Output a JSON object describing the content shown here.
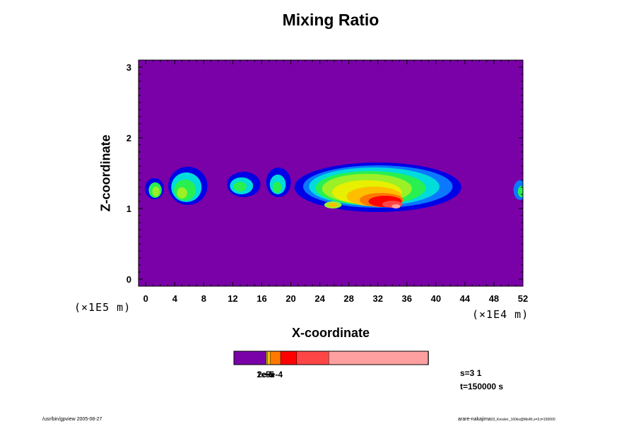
{
  "footer": {
    "left": "/usr/bin/gpview 2005-08-27",
    "right": "arare-nakajima",
    "right_small": "03_Kessler_160ks@MixRt,s=3,t=150000"
  },
  "info": {
    "s": "s=3 1",
    "t": "t=150000 s"
  },
  "colors": {
    "background": "#7a00a8",
    "levels": [
      "#7a00a8",
      "#0000e6",
      "#0a78ff",
      "#00dcdc",
      "#28f050",
      "#9cf028",
      "#e6f000",
      "#ffbe00",
      "#ff7800",
      "#ff0000",
      "#ff4646",
      "#ffa0a0"
    ]
  },
  "chart_data": {
    "type": "heatmap",
    "title": "Mixing Ratio",
    "xlabel": "X-coordinate",
    "ylabel": "Z-coordinate",
    "x_multiplier": "(×1E4 m)",
    "z_multiplier": "(×1E5 m)",
    "xlim": [
      -1,
      52
    ],
    "ylim": [
      -0.1,
      3.1
    ],
    "x_ticks": [
      0,
      4,
      8,
      12,
      16,
      20,
      24,
      28,
      32,
      36,
      40,
      44,
      48,
      52
    ],
    "y_ticks": [
      0,
      1,
      2,
      3
    ],
    "x_tick_labels": [
      "0",
      "4",
      "8",
      "12",
      "16",
      "20",
      "24",
      "28",
      "32",
      "36",
      "40",
      "44",
      "48",
      "52"
    ],
    "y_tick_labels": [
      "0",
      "1",
      "2",
      "3"
    ],
    "colorbar_labels": [
      "1e-5",
      "2e-5",
      "5e-4"
    ],
    "colorbar_bins": [
      {
        "color": "#7a00a8",
        "span": 0.167
      },
      {
        "color": "#e6f000",
        "span": 0.006
      },
      {
        "color": "#ffbe00",
        "span": 0.015
      },
      {
        "color": "#ff7800",
        "span": 0.052
      },
      {
        "color": "#ff0000",
        "span": 0.083
      },
      {
        "color": "#ff4646",
        "span": 0.165
      },
      {
        "color": "#ffa0a0",
        "span": 0.512
      }
    ],
    "cells": [
      {
        "x": 1.2,
        "z": 1.28,
        "rx": 1.3,
        "rz": 0.15,
        "level": 1
      },
      {
        "x": 1.3,
        "z": 1.26,
        "rx": 0.9,
        "rz": 0.11,
        "level": 4
      },
      {
        "x": 1.4,
        "z": 1.24,
        "rx": 0.5,
        "rz": 0.07,
        "level": 5
      },
      {
        "x": 5.8,
        "z": 1.32,
        "rx": 2.7,
        "rz": 0.27,
        "level": 1
      },
      {
        "x": 5.6,
        "z": 1.3,
        "rx": 2.1,
        "rz": 0.21,
        "level": 3
      },
      {
        "x": 5.4,
        "z": 1.26,
        "rx": 1.5,
        "rz": 0.15,
        "level": 4
      },
      {
        "x": 5.0,
        "z": 1.22,
        "rx": 0.7,
        "rz": 0.08,
        "level": 5
      },
      {
        "x": 13.5,
        "z": 1.34,
        "rx": 2.3,
        "rz": 0.18,
        "level": 1
      },
      {
        "x": 13.2,
        "z": 1.32,
        "rx": 1.6,
        "rz": 0.12,
        "level": 3
      },
      {
        "x": 13.0,
        "z": 1.31,
        "rx": 0.9,
        "rz": 0.07,
        "level": 4
      },
      {
        "x": 18.3,
        "z": 1.37,
        "rx": 1.7,
        "rz": 0.21,
        "level": 1
      },
      {
        "x": 18.2,
        "z": 1.34,
        "rx": 1.1,
        "rz": 0.14,
        "level": 3
      },
      {
        "x": 18.1,
        "z": 1.3,
        "rx": 0.6,
        "rz": 0.08,
        "level": 4
      },
      {
        "x": 32.0,
        "z": 1.3,
        "rx": 11.5,
        "rz": 0.35,
        "level": 1
      },
      {
        "x": 32.0,
        "z": 1.31,
        "rx": 10.3,
        "rz": 0.3,
        "level": 2
      },
      {
        "x": 31.5,
        "z": 1.31,
        "rx": 9.0,
        "rz": 0.27,
        "level": 3
      },
      {
        "x": 31.0,
        "z": 1.29,
        "rx": 7.6,
        "rz": 0.24,
        "level": 4
      },
      {
        "x": 30.5,
        "z": 1.28,
        "rx": 6.2,
        "rz": 0.21,
        "level": 5
      },
      {
        "x": 30.5,
        "z": 1.23,
        "rx": 4.8,
        "rz": 0.17,
        "level": 6
      },
      {
        "x": 31.5,
        "z": 1.17,
        "rx": 3.8,
        "rz": 0.14,
        "level": 7
      },
      {
        "x": 32.5,
        "z": 1.12,
        "rx": 3.0,
        "rz": 0.1,
        "level": 8
      },
      {
        "x": 33.0,
        "z": 1.1,
        "rx": 2.3,
        "rz": 0.08,
        "level": 9
      },
      {
        "x": 34.0,
        "z": 1.06,
        "rx": 1.4,
        "rz": 0.05,
        "level": 10
      },
      {
        "x": 34.5,
        "z": 1.03,
        "rx": 0.6,
        "rz": 0.03,
        "level": 11
      },
      {
        "x": 25.8,
        "z": 1.05,
        "rx": 1.2,
        "rz": 0.05,
        "level": 5
      },
      {
        "x": 25.8,
        "z": 1.05,
        "rx": 0.6,
        "rz": 0.03,
        "level": 7
      },
      {
        "x": 51.6,
        "z": 1.26,
        "rx": 0.9,
        "rz": 0.14,
        "level": 2
      },
      {
        "x": 51.8,
        "z": 1.24,
        "rx": 0.5,
        "rz": 0.08,
        "level": 4
      }
    ]
  }
}
